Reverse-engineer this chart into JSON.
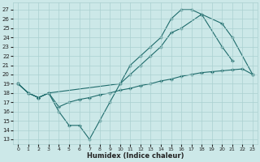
{
  "xlabel": "Humidex (Indice chaleur)",
  "background_color": "#cce8e8",
  "line_color": "#1e6b6b",
  "grid_color": "#aad0d0",
  "xlim": [
    -0.5,
    23.5
  ],
  "ylim": [
    12.5,
    27.8
  ],
  "xticks": [
    0,
    1,
    2,
    3,
    4,
    5,
    6,
    7,
    8,
    9,
    10,
    11,
    12,
    13,
    14,
    15,
    16,
    17,
    18,
    19,
    20,
    21,
    22,
    23
  ],
  "yticks": [
    13,
    14,
    15,
    16,
    17,
    18,
    19,
    20,
    21,
    22,
    23,
    24,
    25,
    26,
    27
  ],
  "series": [
    {
      "x": [
        0,
        1,
        2,
        3,
        4,
        5,
        6,
        7,
        8,
        9,
        10,
        11,
        12,
        13,
        14,
        15,
        16,
        17,
        18,
        20,
        21
      ],
      "y": [
        19,
        18,
        17.5,
        18,
        16,
        14.5,
        14.5,
        13,
        15,
        17,
        19,
        21,
        22,
        23,
        24,
        26,
        27,
        27,
        26.5,
        23,
        21.5
      ]
    },
    {
      "x": [
        0,
        1,
        2,
        3,
        10,
        11,
        12,
        13,
        14,
        15,
        16,
        18,
        20,
        21,
        23
      ],
      "y": [
        19,
        18,
        17.5,
        18,
        19,
        20,
        21,
        22,
        23,
        24.5,
        25,
        26.5,
        25.5,
        24,
        20
      ]
    },
    {
      "x": [
        0,
        1,
        2,
        3,
        4,
        5,
        6,
        7,
        8,
        9,
        10,
        11,
        12,
        13,
        14,
        15,
        16,
        17,
        18,
        19,
        20,
        21,
        22,
        23
      ],
      "y": [
        19,
        18.0,
        17.5,
        18.0,
        16.5,
        17.0,
        17.3,
        17.5,
        17.8,
        18.0,
        18.3,
        18.5,
        18.8,
        19.0,
        19.3,
        19.5,
        19.8,
        20.0,
        20.2,
        20.3,
        20.4,
        20.5,
        20.6,
        20.0
      ]
    }
  ]
}
